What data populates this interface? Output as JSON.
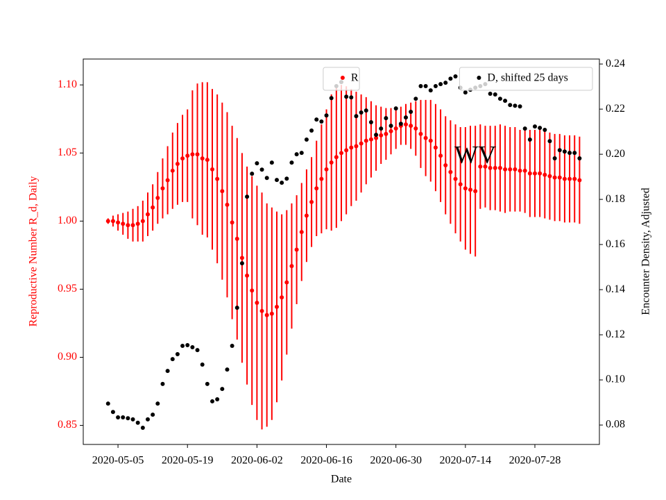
{
  "chart_data": {
    "type": "errorbar-scatter",
    "x_label": "Date",
    "y_label": "Reproductive Number R_d, Daily",
    "y2_label": "Encounter Density, Adjusted",
    "annotations": [
      {
        "text": "WV",
        "x": "2020-07-16",
        "y": 1.047
      }
    ],
    "x": [
      "2020-05-03",
      "2020-05-04",
      "2020-05-05",
      "2020-05-06",
      "2020-05-07",
      "2020-05-08",
      "2020-05-09",
      "2020-05-10",
      "2020-05-11",
      "2020-05-12",
      "2020-05-13",
      "2020-05-14",
      "2020-05-15",
      "2020-05-16",
      "2020-05-17",
      "2020-05-18",
      "2020-05-19",
      "2020-05-20",
      "2020-05-21",
      "2020-05-22",
      "2020-05-23",
      "2020-05-24",
      "2020-05-25",
      "2020-05-26",
      "2020-05-27",
      "2020-05-28",
      "2020-05-29",
      "2020-05-30",
      "2020-05-31",
      "2020-06-01",
      "2020-06-02",
      "2020-06-03",
      "2020-06-04",
      "2020-06-05",
      "2020-06-06",
      "2020-06-07",
      "2020-06-08",
      "2020-06-09",
      "2020-06-10",
      "2020-06-11",
      "2020-06-12",
      "2020-06-13",
      "2020-06-14",
      "2020-06-15",
      "2020-06-16",
      "2020-06-17",
      "2020-06-18",
      "2020-06-19",
      "2020-06-20",
      "2020-06-21",
      "2020-06-22",
      "2020-06-23",
      "2020-06-24",
      "2020-06-25",
      "2020-06-26",
      "2020-06-27",
      "2020-06-28",
      "2020-06-29",
      "2020-06-30",
      "2020-07-01",
      "2020-07-02",
      "2020-07-03",
      "2020-07-04",
      "2020-07-05",
      "2020-07-06",
      "2020-07-07",
      "2020-07-08",
      "2020-07-09",
      "2020-07-10",
      "2020-07-11",
      "2020-07-12",
      "2020-07-13",
      "2020-07-14",
      "2020-07-15",
      "2020-07-16",
      "2020-07-17",
      "2020-07-18",
      "2020-07-19",
      "2020-07-20",
      "2020-07-21",
      "2020-07-22",
      "2020-07-23",
      "2020-07-24",
      "2020-07-25",
      "2020-07-26",
      "2020-07-27",
      "2020-07-28",
      "2020-07-29",
      "2020-07-30",
      "2020-07-31",
      "2020-08-01",
      "2020-08-02",
      "2020-08-03",
      "2020-08-04",
      "2020-08-05",
      "2020-08-06"
    ],
    "series": [
      {
        "name": "R",
        "color": "#ff0000",
        "legend_loc": "upper center",
        "values": [
          1.0,
          1.0,
          0.999,
          0.998,
          0.997,
          0.997,
          0.998,
          1.0,
          1.005,
          1.01,
          1.017,
          1.024,
          1.03,
          1.037,
          1.042,
          1.046,
          1.048,
          1.049,
          1.049,
          1.046,
          1.045,
          1.038,
          1.031,
          1.022,
          1.012,
          0.999,
          0.987,
          0.973,
          0.96,
          0.949,
          0.94,
          0.934,
          0.931,
          0.932,
          0.937,
          0.944,
          0.955,
          0.967,
          0.979,
          0.992,
          1.004,
          1.014,
          1.024,
          1.031,
          1.038,
          1.043,
          1.047,
          1.05,
          1.052,
          1.054,
          1.055,
          1.057,
          1.059,
          1.06,
          1.061,
          1.063,
          1.064,
          1.066,
          1.068,
          1.07,
          1.071,
          1.07,
          1.068,
          1.064,
          1.061,
          1.059,
          1.054,
          1.048,
          1.041,
          1.036,
          1.031,
          1.027,
          1.024,
          1.023,
          1.022,
          1.04,
          1.04,
          1.039,
          1.039,
          1.039,
          1.038,
          1.038,
          1.038,
          1.037,
          1.037,
          1.035,
          1.035,
          1.035,
          1.034,
          1.033,
          1.032,
          1.032,
          1.031,
          1.031,
          1.031,
          1.03
        ],
        "errors": [
          0.002,
          0.004,
          0.006,
          0.008,
          0.01,
          0.012,
          0.013,
          0.015,
          0.016,
          0.017,
          0.019,
          0.022,
          0.025,
          0.028,
          0.03,
          0.032,
          0.034,
          0.047,
          0.052,
          0.056,
          0.057,
          0.059,
          0.062,
          0.065,
          0.068,
          0.071,
          0.074,
          0.077,
          0.08,
          0.084,
          0.086,
          0.087,
          0.082,
          0.078,
          0.07,
          0.061,
          0.053,
          0.046,
          0.04,
          0.036,
          0.034,
          0.033,
          0.035,
          0.04,
          0.044,
          0.05,
          0.052,
          0.05,
          0.047,
          0.043,
          0.04,
          0.036,
          0.032,
          0.028,
          0.024,
          0.021,
          0.019,
          0.017,
          0.015,
          0.014,
          0.015,
          0.017,
          0.02,
          0.025,
          0.028,
          0.03,
          0.032,
          0.034,
          0.036,
          0.038,
          0.04,
          0.042,
          0.045,
          0.047,
          0.048,
          0.031,
          0.03,
          0.031,
          0.031,
          0.032,
          0.032,
          0.031,
          0.031,
          0.03,
          0.031,
          0.032,
          0.032,
          0.032,
          0.032,
          0.032,
          0.032,
          0.032,
          0.032,
          0.032,
          0.032,
          0.032
        ]
      },
      {
        "name": "D, shifted 25 days",
        "color": "#000000",
        "axis": "y2",
        "legend_loc": "upper right",
        "values": [
          0.0895,
          0.0858,
          0.0834,
          0.0834,
          0.083,
          0.0825,
          0.081,
          0.0788,
          0.0825,
          0.0846,
          0.0895,
          0.0982,
          0.104,
          0.1092,
          0.1114,
          0.1151,
          0.1154,
          0.1145,
          0.1132,
          0.1068,
          0.0982,
          0.0905,
          0.0914,
          0.096,
          0.1046,
          0.1151,
          0.132,
          0.1517,
          0.1812,
          0.1914,
          0.196,
          0.1932,
          0.1895,
          0.1963,
          0.1886,
          0.1874,
          0.1892,
          0.1963,
          0.2,
          0.2006,
          0.2065,
          0.2105,
          0.2154,
          0.2145,
          0.2172,
          0.2249,
          0.2302,
          0.232,
          0.2255,
          0.2252,
          0.2169,
          0.2185,
          0.2194,
          0.2142,
          0.2086,
          0.2114,
          0.216,
          0.2126,
          0.2203,
          0.2135,
          0.2163,
          0.2188,
          0.2246,
          0.2302,
          0.2302,
          0.2283,
          0.2302,
          0.2311,
          0.2317,
          0.2335,
          0.2345,
          0.2295,
          0.2274,
          0.2286,
          0.2295,
          0.2302,
          0.2311,
          0.2268,
          0.2265,
          0.2246,
          0.2237,
          0.2218,
          0.2215,
          0.2212,
          0.2114,
          0.2065,
          0.2123,
          0.2117,
          0.2108,
          0.2058,
          0.1982,
          0.2018,
          0.2012,
          0.2006,
          0.2006,
          0.1982
        ]
      }
    ],
    "xlim": [
      "2020-04-28",
      "2020-08-10"
    ],
    "xticks": [
      "2020-05-05",
      "2020-05-19",
      "2020-06-02",
      "2020-06-16",
      "2020-06-30",
      "2020-07-14",
      "2020-07-28"
    ],
    "ylim": [
      0.836,
      1.119
    ],
    "yticks": [
      0.85,
      {
        "value": 0.9,
        "label": "0.90"
      },
      0.95,
      {
        "value": 1.0,
        "label": "1.00"
      },
      1.05,
      {
        "value": 1.1,
        "label": "1.10"
      }
    ],
    "y2lim": [
      0.0714,
      0.2422
    ],
    "y2ticks": [
      0.08,
      {
        "value": 0.1,
        "label": "0.10"
      },
      0.12,
      0.14,
      0.16,
      0.18,
      {
        "value": 0.2,
        "label": "0.20"
      },
      0.22,
      0.24
    ]
  }
}
